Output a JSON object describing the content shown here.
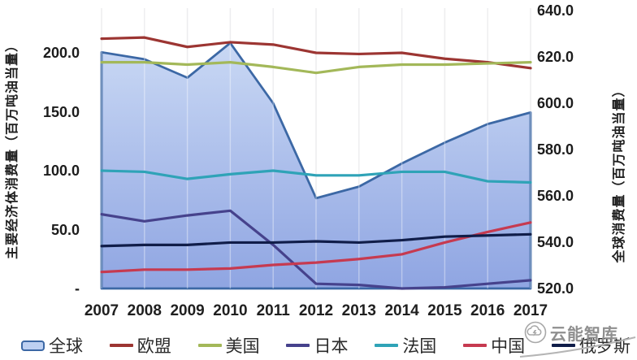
{
  "watermark": {
    "text": "云能智库",
    "icon": "cloud-logo-icon",
    "color": "#8f8f8f"
  },
  "chart_data": {
    "type": "area",
    "title": "",
    "x": [
      2007,
      2008,
      2009,
      2010,
      2011,
      2012,
      2013,
      2014,
      2015,
      2016,
      2017
    ],
    "x_labels": [
      "2007",
      "2008",
      "2009",
      "2010",
      "2011",
      "2012",
      "2013",
      "2014",
      "2015",
      "2016",
      "2017"
    ],
    "grid": "vertical-gridlines-only",
    "legend_position": "bottom",
    "left_axis": {
      "title": "主要经济体消费量（百万吨油当量）",
      "range": [
        0,
        238
      ],
      "ticks": [
        {
          "label": "200.0",
          "value": 200
        },
        {
          "label": "150.0",
          "value": 150
        },
        {
          "label": "100.0",
          "value": 100
        },
        {
          "label": "50.0",
          "value": 50
        },
        {
          "label": "-",
          "value": 0
        }
      ]
    },
    "right_axis": {
      "title": "全球消费量（百万吨油当量）",
      "range": [
        520,
        641
      ],
      "ticks": [
        {
          "label": "640.0",
          "value": 640
        },
        {
          "label": "620.0",
          "value": 620
        },
        {
          "label": "600.0",
          "value": 600
        },
        {
          "label": "580.0",
          "value": 580
        },
        {
          "label": "560.0",
          "value": 560
        },
        {
          "label": "540.0",
          "value": 540
        },
        {
          "label": "520.0",
          "value": 520
        }
      ]
    },
    "series": [
      {
        "name": "全球",
        "key": "global",
        "type": "area",
        "axis": "right",
        "color": "#3c68a5",
        "fill_top": "#c9d8f4",
        "fill_bottom": "#8fa5e2",
        "legend_fill": "#bdd0f2",
        "values": [
          622,
          619,
          611,
          626,
          600,
          559,
          564,
          574,
          583,
          591,
          596
        ]
      },
      {
        "name": "欧盟",
        "key": "eu",
        "type": "line",
        "axis": "left",
        "color": "#9c3532",
        "values": [
          212,
          213,
          205,
          209,
          207,
          200,
          199,
          200,
          195,
          192,
          187
        ]
      },
      {
        "name": "美国",
        "key": "us",
        "type": "line",
        "axis": "left",
        "color": "#a3b859",
        "values": [
          192,
          192,
          190,
          192,
          188,
          183,
          188,
          190,
          190,
          191,
          192
        ]
      },
      {
        "name": "日本",
        "key": "japan",
        "type": "line",
        "axis": "left",
        "color": "#46428c",
        "values": [
          63,
          57,
          62,
          66,
          37,
          4,
          3,
          0,
          1,
          4,
          7
        ]
      },
      {
        "name": "法国",
        "key": "france",
        "type": "line",
        "axis": "left",
        "color": "#2fa3b7",
        "values": [
          100,
          99,
          93,
          97,
          100,
          96,
          96,
          99,
          99,
          91,
          90
        ]
      },
      {
        "name": "中国",
        "key": "china",
        "type": "line",
        "axis": "left",
        "color": "#c63a50",
        "values": [
          14,
          16,
          16,
          17,
          20,
          22,
          25,
          29,
          39,
          48,
          56
        ]
      },
      {
        "name": "俄罗斯",
        "key": "russia",
        "type": "line",
        "axis": "left",
        "color": "#101d49",
        "values": [
          36,
          37,
          37,
          39,
          39,
          40,
          39,
          41,
          44,
          45,
          46
        ]
      }
    ]
  }
}
